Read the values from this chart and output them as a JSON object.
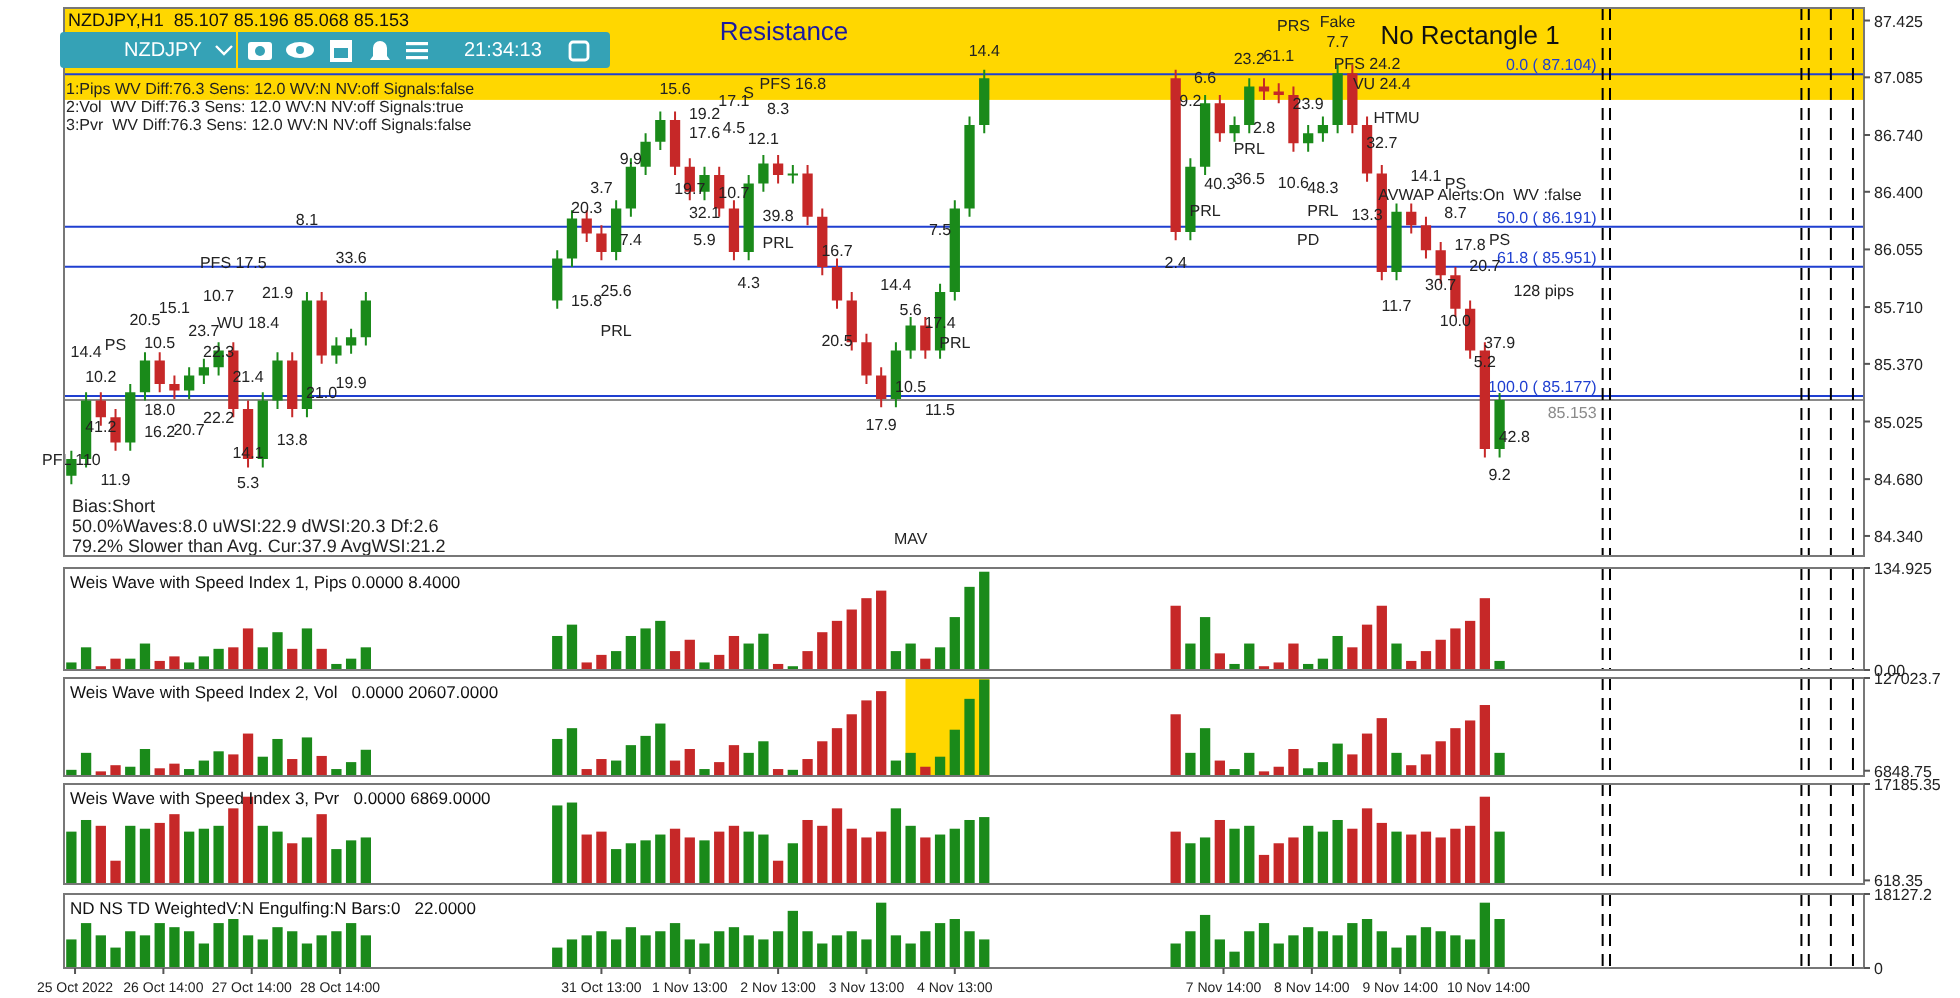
{
  "chart_data": [
    {
      "type": "candlestick",
      "title": "NZDJPY,H1  85.107 85.196 85.068 85.153",
      "x": [
        "2022-10-25T13:00",
        "2022-10-25T17:00",
        "2022-10-25T21:00",
        "2022-10-26T01:00",
        "2022-10-26T05:00",
        "2022-10-26T09:00",
        "2022-10-26T13:00",
        "2022-10-26T17:00",
        "2022-10-26T21:00",
        "2022-10-27T01:00",
        "2022-10-27T05:00",
        "2022-10-27T09:00",
        "2022-10-27T13:00",
        "2022-10-27T17:00",
        "2022-10-27T21:00",
        "2022-10-28T01:00",
        "2022-10-28T05:00",
        "2022-10-28T09:00",
        "2022-10-28T13:00",
        "2022-10-28T17:00",
        "2022-10-28T21:00",
        "2022-10-31T01:00",
        "2022-10-31T05:00",
        "2022-10-31T09:00",
        "2022-10-31T13:00",
        "2022-10-31T17:00",
        "2022-10-31T21:00",
        "2022-11-01T01:00",
        "2022-11-01T05:00",
        "2022-11-01T09:00",
        "2022-11-01T13:00",
        "2022-11-01T17:00",
        "2022-11-01T21:00",
        "2022-11-02T01:00",
        "2022-11-02T05:00",
        "2022-11-02T09:00",
        "2022-11-02T13:00",
        "2022-11-02T17:00",
        "2022-11-02T21:00",
        "2022-11-03T01:00",
        "2022-11-03T05:00",
        "2022-11-03T09:00",
        "2022-11-03T13:00",
        "2022-11-03T17:00",
        "2022-11-03T21:00",
        "2022-11-04T01:00",
        "2022-11-04T05:00",
        "2022-11-04T09:00",
        "2022-11-04T13:00",
        "2022-11-04T17:00",
        "2022-11-04T21:00",
        "2022-11-07T01:00",
        "2022-11-07T05:00",
        "2022-11-07T09:00",
        "2022-11-07T13:00",
        "2022-11-07T17:00",
        "2022-11-07T21:00",
        "2022-11-08T01:00",
        "2022-11-08T05:00",
        "2022-11-08T09:00",
        "2022-11-08T13:00",
        "2022-11-08T17:00",
        "2022-11-08T21:00",
        "2022-11-09T01:00",
        "2022-11-09T05:00",
        "2022-11-09T09:00",
        "2022-11-09T13:00",
        "2022-11-09T17:00",
        "2022-11-09T21:00",
        "2022-11-10T01:00",
        "2022-11-10T05:00",
        "2022-11-10T09:00",
        "2022-11-10T13:00",
        "2022-11-10T17:00"
      ],
      "ohlc": [
        [
          84.7,
          84.85,
          84.65,
          84.8
        ],
        [
          84.8,
          85.2,
          84.75,
          85.15
        ],
        [
          85.15,
          85.2,
          85.0,
          85.05
        ],
        [
          85.05,
          85.1,
          84.85,
          84.9
        ],
        [
          84.9,
          85.25,
          84.85,
          85.2
        ],
        [
          85.2,
          85.44,
          85.15,
          85.39
        ],
        [
          85.39,
          85.44,
          85.2,
          85.25
        ],
        [
          85.25,
          85.3,
          85.16,
          85.21
        ],
        [
          85.21,
          85.35,
          85.16,
          85.3
        ],
        [
          85.3,
          85.4,
          85.25,
          85.35
        ],
        [
          85.35,
          85.5,
          85.3,
          85.45
        ],
        [
          85.45,
          85.5,
          85.05,
          85.1
        ],
        [
          85.1,
          85.15,
          84.75,
          84.8
        ],
        [
          84.8,
          85.2,
          84.75,
          85.15
        ],
        [
          85.15,
          85.44,
          85.1,
          85.39
        ],
        [
          85.39,
          85.44,
          85.05,
          85.1
        ],
        [
          85.1,
          85.8,
          85.05,
          85.75
        ],
        [
          85.75,
          85.8,
          85.37,
          85.42
        ],
        [
          85.42,
          85.53,
          85.37,
          85.48
        ],
        [
          85.48,
          85.58,
          85.43,
          85.53
        ],
        [
          85.53,
          85.8,
          85.48,
          85.75
        ],
        [
          85.75,
          86.05,
          85.7,
          86.0
        ],
        [
          86.0,
          86.29,
          85.95,
          86.24
        ],
        [
          86.24,
          86.29,
          86.1,
          86.15
        ],
        [
          86.15,
          86.2,
          85.99,
          86.04
        ],
        [
          86.04,
          86.35,
          85.99,
          86.3
        ],
        [
          86.3,
          86.6,
          86.25,
          86.55
        ],
        [
          86.55,
          86.75,
          86.5,
          86.7
        ],
        [
          86.7,
          86.88,
          86.65,
          86.83
        ],
        [
          86.83,
          86.88,
          86.5,
          86.55
        ],
        [
          86.55,
          86.6,
          86.35,
          86.4
        ],
        [
          86.4,
          86.55,
          86.35,
          86.5
        ],
        [
          86.5,
          86.55,
          86.25,
          86.3
        ],
        [
          86.3,
          86.35,
          85.99,
          86.04
        ],
        [
          86.04,
          86.5,
          85.99,
          86.45
        ],
        [
          86.45,
          86.62,
          86.4,
          86.57
        ],
        [
          86.57,
          86.62,
          86.45,
          86.5
        ],
        [
          86.5,
          86.56,
          86.45,
          86.51
        ],
        [
          86.51,
          86.56,
          86.2,
          86.25
        ],
        [
          86.25,
          86.3,
          85.9,
          85.95
        ],
        [
          85.95,
          86.0,
          85.7,
          85.75
        ],
        [
          85.75,
          85.8,
          85.45,
          85.5
        ],
        [
          85.5,
          85.55,
          85.25,
          85.3
        ],
        [
          85.3,
          85.35,
          85.11,
          85.16
        ],
        [
          85.16,
          85.5,
          85.11,
          85.45
        ],
        [
          85.45,
          85.65,
          85.4,
          85.6
        ],
        [
          85.6,
          85.65,
          85.4,
          85.45
        ],
        [
          85.45,
          85.85,
          85.4,
          85.8
        ],
        [
          85.8,
          86.35,
          85.75,
          86.3
        ],
        [
          86.3,
          86.85,
          86.25,
          86.8
        ],
        [
          86.8,
          87.13,
          86.75,
          87.08
        ],
        [
          87.08,
          87.13,
          86.11,
          86.16
        ],
        [
          86.16,
          86.6,
          86.11,
          86.55
        ],
        [
          86.55,
          86.98,
          86.5,
          86.93
        ],
        [
          86.93,
          86.98,
          86.7,
          86.75
        ],
        [
          86.75,
          86.85,
          86.7,
          86.8
        ],
        [
          86.8,
          87.08,
          86.75,
          87.03
        ],
        [
          87.03,
          87.08,
          86.95,
          87.0
        ],
        [
          87.0,
          87.05,
          86.93,
          86.98
        ],
        [
          86.98,
          87.03,
          86.64,
          86.69
        ],
        [
          86.69,
          86.8,
          86.64,
          86.75
        ],
        [
          86.75,
          86.85,
          86.7,
          86.8
        ],
        [
          86.8,
          87.16,
          86.75,
          87.11
        ],
        [
          87.11,
          87.16,
          86.75,
          86.8
        ],
        [
          86.8,
          86.85,
          86.46,
          86.51
        ],
        [
          86.51,
          86.56,
          85.87,
          85.92
        ],
        [
          85.92,
          86.33,
          85.87,
          86.28
        ],
        [
          86.28,
          86.33,
          86.15,
          86.2
        ],
        [
          86.2,
          86.25,
          86.0,
          86.05
        ],
        [
          86.05,
          86.1,
          85.85,
          85.9
        ],
        [
          85.9,
          85.95,
          85.65,
          85.7
        ],
        [
          85.7,
          85.75,
          85.4,
          85.45
        ],
        [
          85.45,
          85.5,
          84.81,
          84.86
        ],
        [
          84.86,
          85.196,
          84.81,
          85.153
        ]
      ],
      "colors": [
        "#1a8a1a",
        "#1a8a1a",
        "#c62828",
        "#c62828",
        "#1a8a1a",
        "#1a8a1a",
        "#c62828",
        "#c62828",
        "#1a8a1a",
        "#1a8a1a",
        "#1a8a1a",
        "#c62828",
        "#c62828",
        "#1a8a1a",
        "#1a8a1a",
        "#c62828",
        "#1a8a1a",
        "#c62828",
        "#1a8a1a",
        "#1a8a1a",
        "#1a8a1a",
        "#1a8a1a",
        "#1a8a1a",
        "#c62828",
        "#c62828",
        "#1a8a1a",
        "#1a8a1a",
        "#1a8a1a",
        "#1a8a1a",
        "#c62828",
        "#c62828",
        "#1a8a1a",
        "#c62828",
        "#c62828",
        "#1a8a1a",
        "#1a8a1a",
        "#c62828",
        "#1a8a1a",
        "#c62828",
        "#c62828",
        "#c62828",
        "#c62828",
        "#c62828",
        "#c62828",
        "#1a8a1a",
        "#1a8a1a",
        "#c62828",
        "#1a8a1a",
        "#1a8a1a",
        "#1a8a1a",
        "#1a8a1a",
        "#c62828",
        "#1a8a1a",
        "#1a8a1a",
        "#c62828",
        "#1a8a1a",
        "#1a8a1a",
        "#c62828",
        "#c62828",
        "#c62828",
        "#1a8a1a",
        "#1a8a1a",
        "#1a8a1a",
        "#c62828",
        "#c62828",
        "#c62828",
        "#1a8a1a",
        "#c62828",
        "#c62828",
        "#c62828",
        "#c62828",
        "#c62828",
        "#c62828",
        "#1a8a1a"
      ],
      "xlim": [
        "2022-10-25T11:00",
        "2022-11-14T20:00"
      ],
      "ylim": [
        84.22,
        87.5
      ],
      "yticks": [
        {
          "value": 87.425,
          "label": "87.425"
        },
        {
          "value": 87.085,
          "label": "87.085"
        },
        {
          "value": 86.74,
          "label": "86.740"
        },
        {
          "value": 86.4,
          "label": "86.400"
        },
        {
          "value": 86.055,
          "label": "86.055"
        },
        {
          "value": 85.71,
          "label": "85.710"
        },
        {
          "value": 85.37,
          "label": "85.370"
        },
        {
          "value": 85.025,
          "label": "85.025"
        },
        {
          "value": 84.68,
          "label": "84.680"
        },
        {
          "value": 84.34,
          "label": "84.340"
        }
      ],
      "tick_labels": "y",
      "bands": [
        {
          "axis": "y",
          "from": 86.95,
          "to": 87.5,
          "label": "Resistance",
          "color": "#ffd700"
        }
      ],
      "ref_lines": [
        {
          "axis": "y",
          "value": 87.104,
          "label": "0.0 ( 87.104)",
          "color": "#1f3fd0",
          "line_style": "solid"
        },
        {
          "axis": "y",
          "value": 86.191,
          "label": "50.0 ( 86.191)",
          "color": "#1f3fd0",
          "line_style": "solid"
        },
        {
          "axis": "y",
          "value": 85.951,
          "label": "61.8 ( 85.951)",
          "color": "#1f3fd0",
          "line_style": "solid"
        },
        {
          "axis": "y",
          "value": 85.177,
          "label": "100.0 ( 85.177)",
          "color": "#1f3fd0",
          "line_style": "solid"
        },
        {
          "axis": "y",
          "value": 85.153,
          "label": "85.153",
          "color": "#8a8a8a",
          "line_style": "solid"
        },
        {
          "axis": "x",
          "value": "2022-11-11T21:00",
          "color": "#000000",
          "line_style": "dashed"
        },
        {
          "axis": "x",
          "value": "2022-11-11T23:00",
          "color": "#000000",
          "line_style": "dashed"
        },
        {
          "axis": "x",
          "value": "2022-11-14T03:00",
          "color": "#000000",
          "line_style": "dashed"
        },
        {
          "axis": "x",
          "value": "2022-11-14T05:00",
          "color": "#000000",
          "line_style": "dashed"
        },
        {
          "axis": "x",
          "value": "2022-11-14T11:00",
          "color": "#000000",
          "line_style": "dashed"
        },
        {
          "axis": "x",
          "value": "2022-11-14T17:00",
          "color": "#000000",
          "line_style": "dashed"
        }
      ],
      "annotations": [
        "NZDJPY",
        "21:34:13",
        "1:Pips WV Diff:76.3 Sens: 12.0 WV:N NV:off Signals:false",
        "2:Vol  WV Diff:76.3 Sens: 12.0 WV:N NV:off Signals:true",
        "3:Pvr  WV Diff:76.3 Sens: 12.0 WV:N NV:off Signals:false",
        "Bias:Short",
        "50.0%Waves:8.0 uWSI:22.9 dWSI:20.3 Df:2.6",
        "79.2% Slower than Avg. Cur:37.9 AvgWSI:21.2",
        "No Rectangle 1",
        "AVWAP Alerts:On  WV :false",
        "14.4",
        "10.2",
        "PS",
        "41.2",
        "11.9",
        "PFL 110",
        "20.5",
        "10.5",
        "15.1",
        "23.7",
        "18.0",
        "16.2",
        "20.7",
        "22.2",
        "22.3",
        "PFS 17.5",
        "10.7",
        "WU 18.4",
        "21.4",
        "21.9",
        "14.1",
        "5.3",
        "13.8",
        "8.1",
        "33.6",
        "21.0",
        "19.9",
        "15.8",
        "25.6",
        "PRL",
        "20.3",
        "3.7",
        "7.4",
        "9.9",
        "15.6",
        "19.2",
        "17.6",
        "17.1",
        "4.5",
        "S",
        "19.7",
        "32.1",
        "10.7",
        "5.9",
        "4.3",
        "12.1",
        "8.3",
        "PFS 16.8",
        "39.8",
        "PRL",
        "16.7",
        "20.5",
        "17.9",
        "14.4",
        "5.6",
        "10.5",
        "11.5",
        "7.5",
        "17.4",
        "PRL",
        "2.4",
        "14.4",
        "9.2",
        "6.6",
        "23.2",
        "61.1",
        "PRS",
        "7.7",
        "Fake",
        "2.8",
        "23.9",
        "40.3",
        "36.5",
        "PRL",
        "PRL",
        "PRL",
        "10.6",
        "48.3",
        "PFS 24.2",
        "VU 24.4",
        "HTMU",
        "32.7",
        "13.3",
        "14.1",
        "PS",
        "8.7",
        "17.8",
        "PD",
        "11.7",
        "30.7",
        "20.7",
        "PS",
        "10.0",
        "5.2",
        "37.9",
        "42.8",
        "9.2",
        "MAV",
        "128 pips"
      ]
    },
    {
      "type": "bar",
      "title": "Weis Wave with Speed Index 1, Pips 0.0000 8.4000",
      "x": [
        "2022-10-25T13:00",
        "2022-10-25T17:00",
        "2022-10-25T21:00",
        "2022-10-26T01:00",
        "2022-10-26T05:00",
        "2022-10-26T09:00",
        "2022-10-26T13:00",
        "2022-10-26T17:00",
        "2022-10-26T21:00",
        "2022-10-27T01:00",
        "2022-10-27T05:00",
        "2022-10-27T09:00",
        "2022-10-27T13:00",
        "2022-10-27T17:00",
        "2022-10-27T21:00",
        "2022-10-28T01:00",
        "2022-10-28T05:00",
        "2022-10-28T09:00",
        "2022-10-28T13:00",
        "2022-10-28T17:00",
        "2022-10-28T21:00",
        "2022-10-31T01:00",
        "2022-10-31T05:00",
        "2022-10-31T09:00",
        "2022-10-31T13:00",
        "2022-10-31T17:00",
        "2022-10-31T21:00",
        "2022-11-01T01:00",
        "2022-11-01T05:00",
        "2022-11-01T09:00",
        "2022-11-01T13:00",
        "2022-11-01T17:00",
        "2022-11-01T21:00",
        "2022-11-02T01:00",
        "2022-11-02T05:00",
        "2022-11-02T09:00",
        "2022-11-02T13:00",
        "2022-11-02T17:00",
        "2022-11-02T21:00",
        "2022-11-03T01:00",
        "2022-11-03T05:00",
        "2022-11-03T09:00",
        "2022-11-03T13:00",
        "2022-11-03T17:00",
        "2022-11-03T21:00",
        "2022-11-04T01:00",
        "2022-11-04T05:00",
        "2022-11-04T09:00",
        "2022-11-04T13:00",
        "2022-11-04T17:00",
        "2022-11-04T21:00",
        "2022-11-07T01:00",
        "2022-11-07T05:00",
        "2022-11-07T09:00",
        "2022-11-07T13:00",
        "2022-11-07T17:00",
        "2022-11-07T21:00",
        "2022-11-08T01:00",
        "2022-11-08T05:00",
        "2022-11-08T09:00",
        "2022-11-08T13:00",
        "2022-11-08T17:00",
        "2022-11-08T21:00",
        "2022-11-09T01:00",
        "2022-11-09T05:00",
        "2022-11-09T09:00",
        "2022-11-09T13:00",
        "2022-11-09T17:00",
        "2022-11-09T21:00",
        "2022-11-10T01:00",
        "2022-11-10T05:00",
        "2022-11-10T09:00",
        "2022-11-10T13:00",
        "2022-11-10T17:00"
      ],
      "values": [
        10,
        30,
        5,
        15,
        15,
        35,
        12,
        18,
        10,
        18,
        28,
        30,
        55,
        30,
        50,
        28,
        55,
        28,
        8,
        15,
        30,
        45,
        60,
        10,
        20,
        25,
        45,
        55,
        65,
        25,
        40,
        10,
        20,
        45,
        35,
        48,
        8,
        5,
        25,
        50,
        65,
        80,
        95,
        105,
        25,
        35,
        15,
        30,
        70,
        110,
        130,
        85,
        35,
        70,
        22,
        8,
        35,
        5,
        10,
        35,
        8,
        15,
        45,
        30,
        60,
        85,
        35,
        12,
        25,
        40,
        55,
        65,
        95,
        12
      ],
      "colors": [
        "#1a8a1a",
        "#1a8a1a",
        "#c62828",
        "#c62828",
        "#1a8a1a",
        "#1a8a1a",
        "#c62828",
        "#c62828",
        "#1a8a1a",
        "#1a8a1a",
        "#1a8a1a",
        "#c62828",
        "#c62828",
        "#1a8a1a",
        "#1a8a1a",
        "#c62828",
        "#1a8a1a",
        "#c62828",
        "#1a8a1a",
        "#1a8a1a",
        "#1a8a1a",
        "#1a8a1a",
        "#1a8a1a",
        "#c62828",
        "#c62828",
        "#1a8a1a",
        "#1a8a1a",
        "#1a8a1a",
        "#1a8a1a",
        "#c62828",
        "#c62828",
        "#1a8a1a",
        "#c62828",
        "#c62828",
        "#1a8a1a",
        "#1a8a1a",
        "#c62828",
        "#1a8a1a",
        "#c62828",
        "#c62828",
        "#c62828",
        "#c62828",
        "#c62828",
        "#c62828",
        "#1a8a1a",
        "#1a8a1a",
        "#c62828",
        "#1a8a1a",
        "#1a8a1a",
        "#1a8a1a",
        "#1a8a1a",
        "#c62828",
        "#1a8a1a",
        "#1a8a1a",
        "#c62828",
        "#1a8a1a",
        "#1a8a1a",
        "#c62828",
        "#c62828",
        "#c62828",
        "#1a8a1a",
        "#1a8a1a",
        "#1a8a1a",
        "#c62828",
        "#c62828",
        "#c62828",
        "#1a8a1a",
        "#c62828",
        "#c62828",
        "#c62828",
        "#c62828",
        "#c62828",
        "#c62828",
        "#1a8a1a"
      ],
      "xlim": [
        "2022-10-25T11:00",
        "2022-11-14T20:00"
      ],
      "ylim": [
        0,
        134.925
      ],
      "yticks": [
        {
          "value": 0,
          "label": "0.00"
        },
        134.925
      ],
      "tick_labels": "y",
      "ref_lines": [
        {
          "axis": "x",
          "value": "2022-11-11T21:00",
          "color": "#000000",
          "line_style": "dashed"
        },
        {
          "axis": "x",
          "value": "2022-11-11T23:00",
          "color": "#000000",
          "line_style": "dashed"
        },
        {
          "axis": "x",
          "value": "2022-11-14T03:00",
          "color": "#000000",
          "line_style": "dashed"
        },
        {
          "axis": "x",
          "value": "2022-11-14T05:00",
          "color": "#000000",
          "line_style": "dashed"
        },
        {
          "axis": "x",
          "value": "2022-11-14T11:00",
          "color": "#000000",
          "line_style": "dashed"
        },
        {
          "axis": "x",
          "value": "2022-11-14T17:00",
          "color": "#000000",
          "line_style": "dashed"
        }
      ]
    },
    {
      "type": "bar",
      "title": "Weis Wave with Speed Index 2, Vol   0.0000 20607.0000",
      "x": [
        "2022-10-25T13:00",
        "2022-10-25T17:00",
        "2022-10-25T21:00",
        "2022-10-26T01:00",
        "2022-10-26T05:00",
        "2022-10-26T09:00",
        "2022-10-26T13:00",
        "2022-10-26T17:00",
        "2022-10-26T21:00",
        "2022-10-27T01:00",
        "2022-10-27T05:00",
        "2022-10-27T09:00",
        "2022-10-27T13:00",
        "2022-10-27T17:00",
        "2022-10-27T21:00",
        "2022-10-28T01:00",
        "2022-10-28T05:00",
        "2022-10-28T09:00",
        "2022-10-28T13:00",
        "2022-10-28T17:00",
        "2022-10-28T21:00",
        "2022-10-31T01:00",
        "2022-10-31T05:00",
        "2022-10-31T09:00",
        "2022-10-31T13:00",
        "2022-10-31T17:00",
        "2022-10-31T21:00",
        "2022-11-01T01:00",
        "2022-11-01T05:00",
        "2022-11-01T09:00",
        "2022-11-01T13:00",
        "2022-11-01T17:00",
        "2022-11-01T21:00",
        "2022-11-02T01:00",
        "2022-11-02T05:00",
        "2022-11-02T09:00",
        "2022-11-02T13:00",
        "2022-11-02T17:00",
        "2022-11-02T21:00",
        "2022-11-03T01:00",
        "2022-11-03T05:00",
        "2022-11-03T09:00",
        "2022-11-03T13:00",
        "2022-11-03T17:00",
        "2022-11-03T21:00",
        "2022-11-04T01:00",
        "2022-11-04T05:00",
        "2022-11-04T09:00",
        "2022-11-04T13:00",
        "2022-11-04T17:00",
        "2022-11-04T21:00",
        "2022-11-07T01:00",
        "2022-11-07T05:00",
        "2022-11-07T09:00",
        "2022-11-07T13:00",
        "2022-11-07T17:00",
        "2022-11-07T21:00",
        "2022-11-08T01:00",
        "2022-11-08T05:00",
        "2022-11-08T09:00",
        "2022-11-08T13:00",
        "2022-11-08T17:00",
        "2022-11-08T21:00",
        "2022-11-09T01:00",
        "2022-11-09T05:00",
        "2022-11-09T09:00",
        "2022-11-09T13:00",
        "2022-11-09T17:00",
        "2022-11-09T21:00",
        "2022-11-10T01:00",
        "2022-11-10T05:00",
        "2022-11-10T09:00",
        "2022-11-10T13:00",
        "2022-11-10T17:00"
      ],
      "values": [
        8000,
        30000,
        6000,
        14000,
        12000,
        35000,
        10000,
        16000,
        9000,
        20000,
        32000,
        28000,
        55000,
        25000,
        48000,
        22000,
        50000,
        26000,
        9000,
        18000,
        34000,
        48000,
        62000,
        9000,
        22000,
        20000,
        40000,
        52000,
        68000,
        20000,
        35000,
        9000,
        18000,
        40000,
        30000,
        45000,
        9000,
        8000,
        22000,
        45000,
        62000,
        80000,
        98000,
        110000,
        20000,
        30000,
        12000,
        25000,
        60000,
        100000,
        125000,
        80000,
        30000,
        62000,
        20000,
        9000,
        30000,
        6000,
        12000,
        35000,
        10000,
        18000,
        42000,
        28000,
        55000,
        75000,
        30000,
        14000,
        28000,
        45000,
        62000,
        72000,
        92000,
        30000
      ],
      "colors": [
        "#1a8a1a",
        "#1a8a1a",
        "#c62828",
        "#c62828",
        "#1a8a1a",
        "#1a8a1a",
        "#c62828",
        "#c62828",
        "#1a8a1a",
        "#1a8a1a",
        "#1a8a1a",
        "#c62828",
        "#c62828",
        "#1a8a1a",
        "#1a8a1a",
        "#c62828",
        "#1a8a1a",
        "#c62828",
        "#1a8a1a",
        "#1a8a1a",
        "#1a8a1a",
        "#1a8a1a",
        "#1a8a1a",
        "#c62828",
        "#c62828",
        "#1a8a1a",
        "#1a8a1a",
        "#1a8a1a",
        "#1a8a1a",
        "#c62828",
        "#c62828",
        "#1a8a1a",
        "#c62828",
        "#c62828",
        "#1a8a1a",
        "#1a8a1a",
        "#c62828",
        "#1a8a1a",
        "#c62828",
        "#c62828",
        "#c62828",
        "#c62828",
        "#c62828",
        "#c62828",
        "#1a8a1a",
        "#1a8a1a",
        "#c62828",
        "#1a8a1a",
        "#1a8a1a",
        "#1a8a1a",
        "#1a8a1a",
        "#c62828",
        "#1a8a1a",
        "#1a8a1a",
        "#c62828",
        "#1a8a1a",
        "#1a8a1a",
        "#c62828",
        "#c62828",
        "#c62828",
        "#1a8a1a",
        "#1a8a1a",
        "#1a8a1a",
        "#c62828",
        "#c62828",
        "#c62828",
        "#1a8a1a",
        "#c62828",
        "#c62828",
        "#c62828",
        "#c62828",
        "#c62828",
        "#c62828",
        "#1a8a1a"
      ],
      "xlim": [
        "2022-10-25T11:00",
        "2022-11-14T20:00"
      ],
      "ylim": [
        0,
        127023.7
      ],
      "yticks": [
        6848.75,
        127023.7
      ],
      "tick_labels": "y",
      "bands": [
        {
          "axis": "x",
          "from": "2022-11-04T01:00",
          "to": "2022-11-04T21:00",
          "color": "#ffd700"
        }
      ],
      "ref_lines": [
        {
          "axis": "x",
          "value": "2022-11-11T21:00",
          "color": "#000000",
          "line_style": "dashed"
        },
        {
          "axis": "x",
          "value": "2022-11-11T23:00",
          "color": "#000000",
          "line_style": "dashed"
        },
        {
          "axis": "x",
          "value": "2022-11-14T03:00",
          "color": "#000000",
          "line_style": "dashed"
        },
        {
          "axis": "x",
          "value": "2022-11-14T05:00",
          "color": "#000000",
          "line_style": "dashed"
        },
        {
          "axis": "x",
          "value": "2022-11-14T11:00",
          "color": "#000000",
          "line_style": "dashed"
        },
        {
          "axis": "x",
          "value": "2022-11-14T17:00",
          "color": "#000000",
          "line_style": "dashed"
        }
      ]
    },
    {
      "type": "bar",
      "title": "Weis Wave with Speed Index 3, Pvr   0.0000 6869.0000",
      "x": [
        "2022-10-25T13:00",
        "2022-10-25T17:00",
        "2022-10-25T21:00",
        "2022-10-26T01:00",
        "2022-10-26T05:00",
        "2022-10-26T09:00",
        "2022-10-26T13:00",
        "2022-10-26T17:00",
        "2022-10-26T21:00",
        "2022-10-27T01:00",
        "2022-10-27T05:00",
        "2022-10-27T09:00",
        "2022-10-27T13:00",
        "2022-10-27T17:00",
        "2022-10-27T21:00",
        "2022-10-28T01:00",
        "2022-10-28T05:00",
        "2022-10-28T09:00",
        "2022-10-28T13:00",
        "2022-10-28T17:00",
        "2022-10-28T21:00",
        "2022-10-31T01:00",
        "2022-10-31T05:00",
        "2022-10-31T09:00",
        "2022-10-31T13:00",
        "2022-10-31T17:00",
        "2022-10-31T21:00",
        "2022-11-01T01:00",
        "2022-11-01T05:00",
        "2022-11-01T09:00",
        "2022-11-01T13:00",
        "2022-11-01T17:00",
        "2022-11-01T21:00",
        "2022-11-02T01:00",
        "2022-11-02T05:00",
        "2022-11-02T09:00",
        "2022-11-02T13:00",
        "2022-11-02T17:00",
        "2022-11-02T21:00",
        "2022-11-03T01:00",
        "2022-11-03T05:00",
        "2022-11-03T09:00",
        "2022-11-03T13:00",
        "2022-11-03T17:00",
        "2022-11-03T21:00",
        "2022-11-04T01:00",
        "2022-11-04T05:00",
        "2022-11-04T09:00",
        "2022-11-04T13:00",
        "2022-11-04T17:00",
        "2022-11-04T21:00",
        "2022-11-07T01:00",
        "2022-11-07T05:00",
        "2022-11-07T09:00",
        "2022-11-07T13:00",
        "2022-11-07T17:00",
        "2022-11-07T21:00",
        "2022-11-08T01:00",
        "2022-11-08T05:00",
        "2022-11-08T09:00",
        "2022-11-08T13:00",
        "2022-11-08T17:00",
        "2022-11-08T21:00",
        "2022-11-09T01:00",
        "2022-11-09T05:00",
        "2022-11-09T09:00",
        "2022-11-09T13:00",
        "2022-11-09T17:00",
        "2022-11-09T21:00",
        "2022-11-10T01:00",
        "2022-11-10T05:00",
        "2022-11-10T09:00",
        "2022-11-10T13:00",
        "2022-11-10T17:00"
      ],
      "values": [
        9000,
        11000,
        10000,
        4000,
        10000,
        9500,
        10500,
        12000,
        9000,
        9500,
        10000,
        13000,
        15000,
        10000,
        9000,
        7000,
        8000,
        12000,
        6000,
        7500,
        8000,
        13500,
        14000,
        8500,
        9000,
        6000,
        7000,
        7500,
        8500,
        9500,
        8000,
        7500,
        9000,
        10000,
        9000,
        8500,
        4000,
        7000,
        11000,
        10000,
        13000,
        9500,
        8000,
        9000,
        13000,
        10000,
        8000,
        8500,
        9500,
        11000,
        11500,
        9000,
        7000,
        8000,
        11000,
        9500,
        10000,
        5000,
        7000,
        8000,
        10000,
        9000,
        11000,
        9500,
        13000,
        10500,
        9000,
        8500,
        9000,
        8000,
        9500,
        10000,
        15000,
        9000
      ],
      "colors": [
        "#1a8a1a",
        "#1a8a1a",
        "#c62828",
        "#c62828",
        "#1a8a1a",
        "#1a8a1a",
        "#c62828",
        "#c62828",
        "#1a8a1a",
        "#1a8a1a",
        "#1a8a1a",
        "#c62828",
        "#c62828",
        "#1a8a1a",
        "#1a8a1a",
        "#c62828",
        "#1a8a1a",
        "#c62828",
        "#1a8a1a",
        "#1a8a1a",
        "#1a8a1a",
        "#1a8a1a",
        "#1a8a1a",
        "#c62828",
        "#c62828",
        "#1a8a1a",
        "#1a8a1a",
        "#1a8a1a",
        "#1a8a1a",
        "#c62828",
        "#c62828",
        "#1a8a1a",
        "#c62828",
        "#c62828",
        "#1a8a1a",
        "#1a8a1a",
        "#c62828",
        "#1a8a1a",
        "#c62828",
        "#c62828",
        "#c62828",
        "#c62828",
        "#c62828",
        "#c62828",
        "#1a8a1a",
        "#1a8a1a",
        "#c62828",
        "#1a8a1a",
        "#1a8a1a",
        "#1a8a1a",
        "#1a8a1a",
        "#c62828",
        "#1a8a1a",
        "#1a8a1a",
        "#c62828",
        "#1a8a1a",
        "#1a8a1a",
        "#c62828",
        "#c62828",
        "#c62828",
        "#1a8a1a",
        "#1a8a1a",
        "#1a8a1a",
        "#c62828",
        "#c62828",
        "#c62828",
        "#1a8a1a",
        "#c62828",
        "#c62828",
        "#c62828",
        "#c62828",
        "#c62828",
        "#c62828",
        "#1a8a1a"
      ],
      "xlim": [
        "2022-10-25T11:00",
        "2022-11-14T20:00"
      ],
      "ylim": [
        0,
        17185.35
      ],
      "yticks": [
        618.35,
        17185.35
      ],
      "tick_labels": "y",
      "ref_lines": [
        {
          "axis": "x",
          "value": "2022-11-11T21:00",
          "color": "#000000",
          "line_style": "dashed"
        },
        {
          "axis": "x",
          "value": "2022-11-11T23:00",
          "color": "#000000",
          "line_style": "dashed"
        },
        {
          "axis": "x",
          "value": "2022-11-14T03:00",
          "color": "#000000",
          "line_style": "dashed"
        },
        {
          "axis": "x",
          "value": "2022-11-14T05:00",
          "color": "#000000",
          "line_style": "dashed"
        },
        {
          "axis": "x",
          "value": "2022-11-14T11:00",
          "color": "#000000",
          "line_style": "dashed"
        },
        {
          "axis": "x",
          "value": "2022-11-14T17:00",
          "color": "#000000",
          "line_style": "dashed"
        }
      ]
    },
    {
      "type": "bar",
      "title": "ND NS TD WeightedV:N Engulfing:N Bars:0   22.0000",
      "x": [
        "2022-10-25T13:00",
        "2022-10-25T17:00",
        "2022-10-25T21:00",
        "2022-10-26T01:00",
        "2022-10-26T05:00",
        "2022-10-26T09:00",
        "2022-10-26T13:00",
        "2022-10-26T17:00",
        "2022-10-26T21:00",
        "2022-10-27T01:00",
        "2022-10-27T05:00",
        "2022-10-27T09:00",
        "2022-10-27T13:00",
        "2022-10-27T17:00",
        "2022-10-27T21:00",
        "2022-10-28T01:00",
        "2022-10-28T05:00",
        "2022-10-28T09:00",
        "2022-10-28T13:00",
        "2022-10-28T17:00",
        "2022-10-28T21:00",
        "2022-10-31T01:00",
        "2022-10-31T05:00",
        "2022-10-31T09:00",
        "2022-10-31T13:00",
        "2022-10-31T17:00",
        "2022-10-31T21:00",
        "2022-11-01T01:00",
        "2022-11-01T05:00",
        "2022-11-01T09:00",
        "2022-11-01T13:00",
        "2022-11-01T17:00",
        "2022-11-01T21:00",
        "2022-11-02T01:00",
        "2022-11-02T05:00",
        "2022-11-02T09:00",
        "2022-11-02T13:00",
        "2022-11-02T17:00",
        "2022-11-02T21:00",
        "2022-11-03T01:00",
        "2022-11-03T05:00",
        "2022-11-03T09:00",
        "2022-11-03T13:00",
        "2022-11-03T17:00",
        "2022-11-03T21:00",
        "2022-11-04T01:00",
        "2022-11-04T05:00",
        "2022-11-04T09:00",
        "2022-11-04T13:00",
        "2022-11-04T17:00",
        "2022-11-04T21:00",
        "2022-11-07T01:00",
        "2022-11-07T05:00",
        "2022-11-07T09:00",
        "2022-11-07T13:00",
        "2022-11-07T17:00",
        "2022-11-07T21:00",
        "2022-11-08T01:00",
        "2022-11-08T05:00",
        "2022-11-08T09:00",
        "2022-11-08T13:00",
        "2022-11-08T17:00",
        "2022-11-08T21:00",
        "2022-11-09T01:00",
        "2022-11-09T05:00",
        "2022-11-09T09:00",
        "2022-11-09T13:00",
        "2022-11-09T17:00",
        "2022-11-09T21:00",
        "2022-11-10T01:00",
        "2022-11-10T05:00",
        "2022-11-10T09:00",
        "2022-11-10T13:00",
        "2022-11-10T17:00"
      ],
      "values": [
        7000,
        11000,
        8000,
        5000,
        9000,
        8000,
        11000,
        10000,
        9000,
        6000,
        11000,
        12000,
        8000,
        7000,
        10000,
        9000,
        6000,
        8000,
        9000,
        11000,
        8000,
        5000,
        7000,
        8000,
        9000,
        7000,
        10000,
        8000,
        9000,
        11000,
        7000,
        6000,
        9000,
        10000,
        8000,
        7000,
        9000,
        14000,
        9000,
        6000,
        8000,
        9000,
        7000,
        16000,
        8000,
        6000,
        9000,
        11000,
        12000,
        9000,
        7000,
        6000,
        9000,
        13000,
        7000,
        4000,
        9000,
        11000,
        6000,
        8000,
        10000,
        9000,
        8000,
        11000,
        12000,
        9000,
        5000,
        8000,
        10000,
        9000,
        8000,
        7000,
        16000,
        12000
      ],
      "color": "#1a8a1a",
      "xlim": [
        "2022-10-25T11:00",
        "2022-11-14T20:00"
      ],
      "ylim": [
        0,
        18127.2
      ],
      "yticks": [
        0,
        18127.2
      ],
      "xticks": [
        {
          "value": "2022-10-25T14:00",
          "label": "25 Oct 2022"
        },
        {
          "value": "2022-10-26T14:00",
          "label": "26 Oct 14:00"
        },
        {
          "value": "2022-10-27T14:00",
          "label": "27 Oct 14:00"
        },
        {
          "value": "2022-10-28T14:00",
          "label": "28 Oct 14:00"
        },
        {
          "value": "2022-10-31T13:00",
          "label": "31 Oct 13:00"
        },
        {
          "value": "2022-11-01T13:00",
          "label": "1 Nov 13:00"
        },
        {
          "value": "2022-11-02T13:00",
          "label": "2 Nov 13:00"
        },
        {
          "value": "2022-11-03T13:00",
          "label": "3 Nov 13:00"
        },
        {
          "value": "2022-11-04T13:00",
          "label": "4 Nov 13:00"
        },
        {
          "value": "2022-11-07T14:00",
          "label": "7 Nov 14:00"
        },
        {
          "value": "2022-11-08T14:00",
          "label": "8 Nov 14:00"
        },
        {
          "value": "2022-11-09T14:00",
          "label": "9 Nov 14:00"
        },
        {
          "value": "2022-11-10T14:00",
          "label": "10 Nov 14:00"
        }
      ],
      "ref_lines": [
        {
          "axis": "x",
          "value": "2022-11-11T21:00",
          "color": "#000000",
          "line_style": "dashed"
        },
        {
          "axis": "x",
          "value": "2022-11-11T23:00",
          "color": "#000000",
          "line_style": "dashed"
        },
        {
          "axis": "x",
          "value": "2022-11-14T03:00",
          "color": "#000000",
          "line_style": "dashed"
        },
        {
          "axis": "x",
          "value": "2022-11-14T05:00",
          "color": "#000000",
          "line_style": "dashed"
        },
        {
          "axis": "x",
          "value": "2022-11-14T11:00",
          "color": "#000000",
          "line_style": "dashed"
        },
        {
          "axis": "x",
          "value": "2022-11-14T17:00",
          "color": "#000000",
          "line_style": "dashed"
        }
      ]
    }
  ]
}
